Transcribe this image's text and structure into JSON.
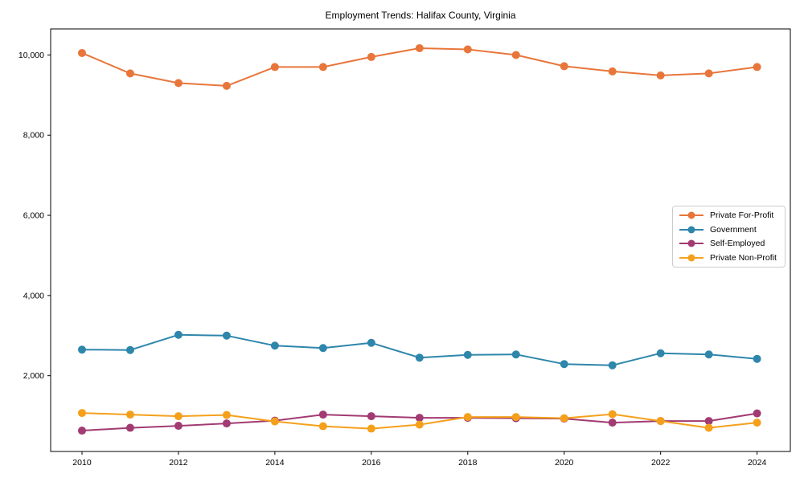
{
  "title": "Employment Trends: Halifax County, Virginia",
  "chart_data": {
    "type": "line",
    "title": "Employment Trends: Halifax County, Virginia",
    "xlabel": "",
    "ylabel": "",
    "grid": false,
    "legend_position": "center right",
    "x": [
      2010,
      2011,
      2012,
      2013,
      2014,
      2015,
      2016,
      2017,
      2018,
      2019,
      2020,
      2021,
      2022,
      2023,
      2024
    ],
    "series": [
      {
        "name": "Private For-Profit",
        "color": "#E8763B",
        "values": [
          10050,
          9540,
          9300,
          9230,
          9700,
          9700,
          9950,
          10170,
          10140,
          10000,
          9720,
          9590,
          9490,
          9540,
          9700
        ]
      },
      {
        "name": "Government",
        "color": "#2E86AB",
        "values": [
          2650,
          2640,
          3020,
          3000,
          2750,
          2690,
          2820,
          2450,
          2520,
          2530,
          2290,
          2260,
          2560,
          2530,
          2420
        ]
      },
      {
        "name": "Self-Employed",
        "color": "#A23B72",
        "values": [
          630,
          700,
          750,
          810,
          880,
          1030,
          990,
          950,
          950,
          940,
          930,
          830,
          870,
          870,
          1060
        ]
      },
      {
        "name": "Private Non-Profit",
        "color": "#F5A01B",
        "values": [
          1070,
          1030,
          990,
          1020,
          860,
          740,
          680,
          780,
          970,
          970,
          940,
          1040,
          870,
          700,
          830
        ]
      }
    ],
    "xticks": [
      2010,
      2012,
      2014,
      2016,
      2018,
      2020,
      2022,
      2024
    ],
    "xtick_labels": [
      "2010",
      "2012",
      "2014",
      "2016",
      "2018",
      "2020",
      "2022",
      "2024"
    ],
    "yticks": [
      2000,
      4000,
      6000,
      8000,
      10000
    ],
    "ytick_labels": [
      "2,000",
      "4,000",
      "6,000",
      "8,000",
      "10,000"
    ],
    "xlim": [
      2009.35,
      2024.69
    ],
    "ylim": [
      110,
      10650
    ]
  },
  "colors": {
    "axis": "#000000",
    "background": "#ffffff",
    "legend_border": "#cccccc",
    "text": "#000000"
  }
}
